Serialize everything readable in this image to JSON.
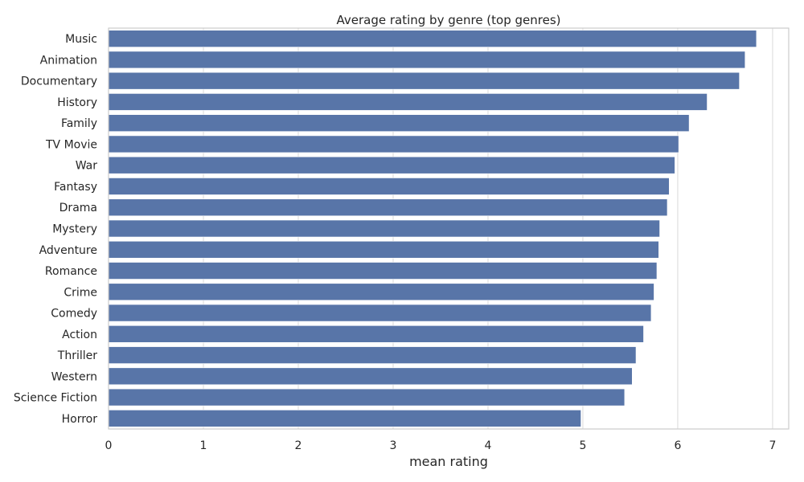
{
  "chart_data": {
    "type": "bar",
    "orientation": "horizontal",
    "title": "Average rating by genre (top genres)",
    "xlabel": "mean rating",
    "ylabel": "",
    "xlim": [
      0,
      7.17
    ],
    "xticks": [
      0,
      1,
      2,
      3,
      4,
      5,
      6,
      7
    ],
    "grid": true,
    "bar_color": "#5875a8",
    "grid_color": "#d9d9d9",
    "frame_color": "#cccccc",
    "categories": [
      "Music",
      "Animation",
      "Documentary",
      "History",
      "Family",
      "TV Movie",
      "War",
      "Fantasy",
      "Drama",
      "Mystery",
      "Adventure",
      "Romance",
      "Crime",
      "Comedy",
      "Action",
      "Thriller",
      "Western",
      "Science Fiction",
      "Horror"
    ],
    "values": [
      6.83,
      6.71,
      6.65,
      6.31,
      6.12,
      6.01,
      5.97,
      5.91,
      5.89,
      5.81,
      5.8,
      5.78,
      5.75,
      5.72,
      5.64,
      5.56,
      5.52,
      5.44,
      4.98
    ]
  }
}
